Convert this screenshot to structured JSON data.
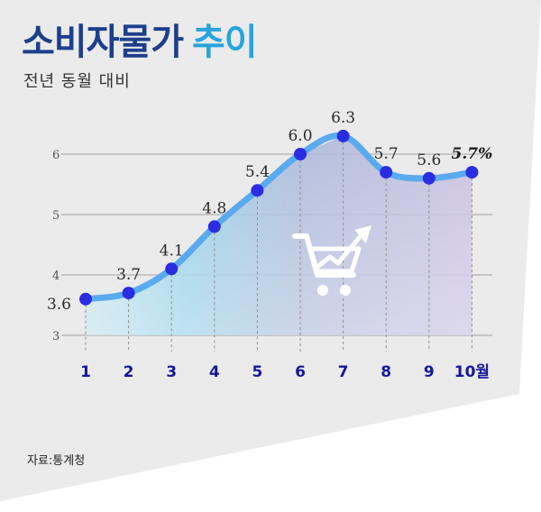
{
  "title": {
    "main": "소비자물가",
    "accent": "추이"
  },
  "subtitle": "전년 동월 대비",
  "source": "자료:통계청",
  "colors": {
    "title": "#1d3f8c",
    "accent": "#27a4dd",
    "line": "#5aaaf0",
    "marker": "#2a2ee0",
    "axis_label": "#14189a",
    "panel": "#ebebeb"
  },
  "icon": "shopping-cart-trend-icon",
  "chart_data": {
    "type": "line",
    "categories": [
      "1",
      "2",
      "3",
      "4",
      "5",
      "6",
      "7",
      "8",
      "9",
      "10월"
    ],
    "values": [
      3.6,
      3.7,
      4.1,
      4.8,
      5.4,
      6.0,
      6.3,
      5.7,
      5.6,
      5.7
    ],
    "value_labels": [
      "3.6",
      "3.7",
      "4.1",
      "4.8",
      "5.4",
      "6.0",
      "6.3",
      "5.7",
      "5.6",
      "5.7%"
    ],
    "y_ticks": [
      3,
      4,
      5,
      6
    ],
    "ylim": [
      3,
      6.7
    ],
    "grid": true,
    "fill": "area gradient under line"
  }
}
